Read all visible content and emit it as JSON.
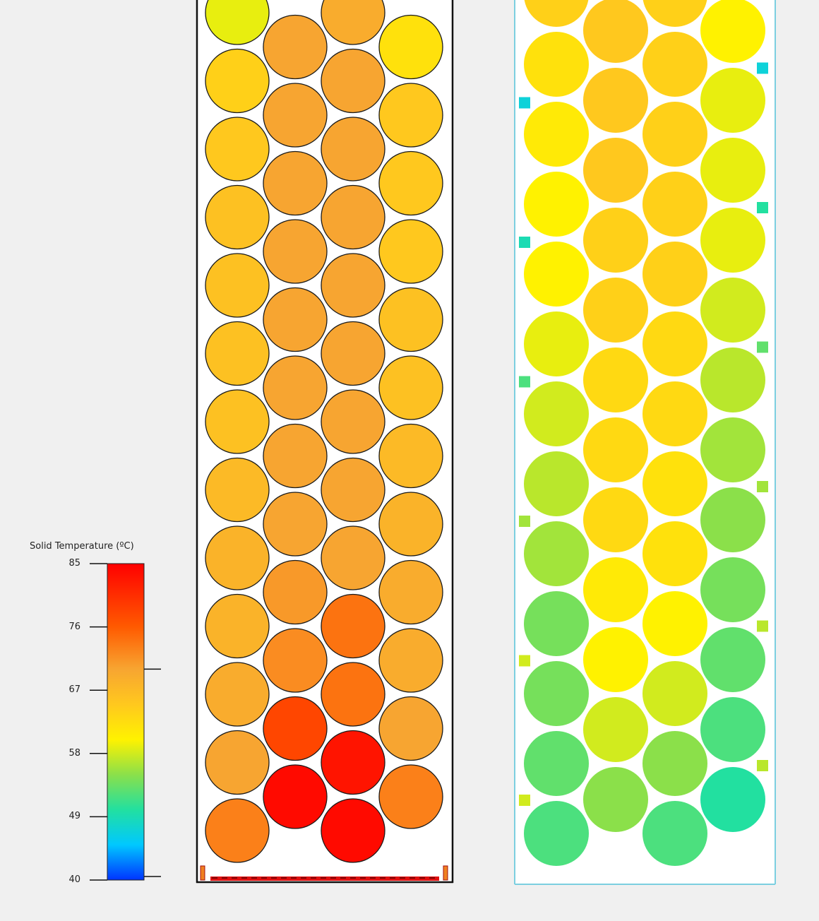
{
  "colorbar": {
    "title": "Solid Temperature (ºC)",
    "min": 40,
    "max": 85,
    "ticks": [
      "85",
      "76",
      "67",
      "58",
      "49",
      "40"
    ],
    "tick_values": [
      85,
      76,
      67,
      58,
      49,
      40
    ],
    "marker_values": [
      70,
      40.5
    ],
    "stops": [
      {
        "v": 40,
        "c": "#0033ff"
      },
      {
        "v": 45,
        "c": "#00c8ff"
      },
      {
        "v": 50,
        "c": "#22e0a0"
      },
      {
        "v": 55,
        "c": "#8be04a"
      },
      {
        "v": 60,
        "c": "#fff200"
      },
      {
        "v": 65,
        "c": "#ffc81e"
      },
      {
        "v": 70,
        "c": "#f7a531"
      },
      {
        "v": 76,
        "c": "#ff5a00"
      },
      {
        "v": 85,
        "c": "#ff0000"
      }
    ]
  },
  "left_panel": {
    "columns": [
      [
        59,
        64,
        65,
        66,
        66,
        66,
        66,
        67,
        68,
        68,
        69,
        70,
        73
      ],
      [
        70,
        70,
        70,
        70,
        70,
        70,
        70,
        70,
        71,
        72,
        78,
        84
      ],
      [
        69,
        70,
        70,
        70,
        70,
        70,
        70,
        70,
        70,
        74,
        74,
        83,
        84
      ],
      [
        62,
        65,
        65,
        65,
        66,
        66,
        67,
        68,
        69,
        69,
        70,
        73
      ]
    ]
  },
  "right_panel": {
    "columns": [
      [
        64,
        62,
        61,
        60,
        60,
        59,
        58,
        57,
        56,
        54,
        54,
        53,
        52
      ],
      [
        65,
        65,
        65,
        64,
        64,
        63,
        63,
        63,
        61,
        60,
        58,
        55
      ],
      [
        64,
        64,
        64,
        64,
        64,
        63,
        63,
        62,
        62,
        60,
        58,
        55,
        52
      ],
      [
        60,
        59,
        59,
        59,
        58,
        57,
        56,
        55,
        54,
        53,
        52,
        50
      ]
    ],
    "wall_markers": {
      "left": [
        58,
        58,
        56,
        52,
        49,
        47
      ],
      "right": [
        57,
        57,
        56,
        53,
        50,
        47
      ]
    }
  }
}
